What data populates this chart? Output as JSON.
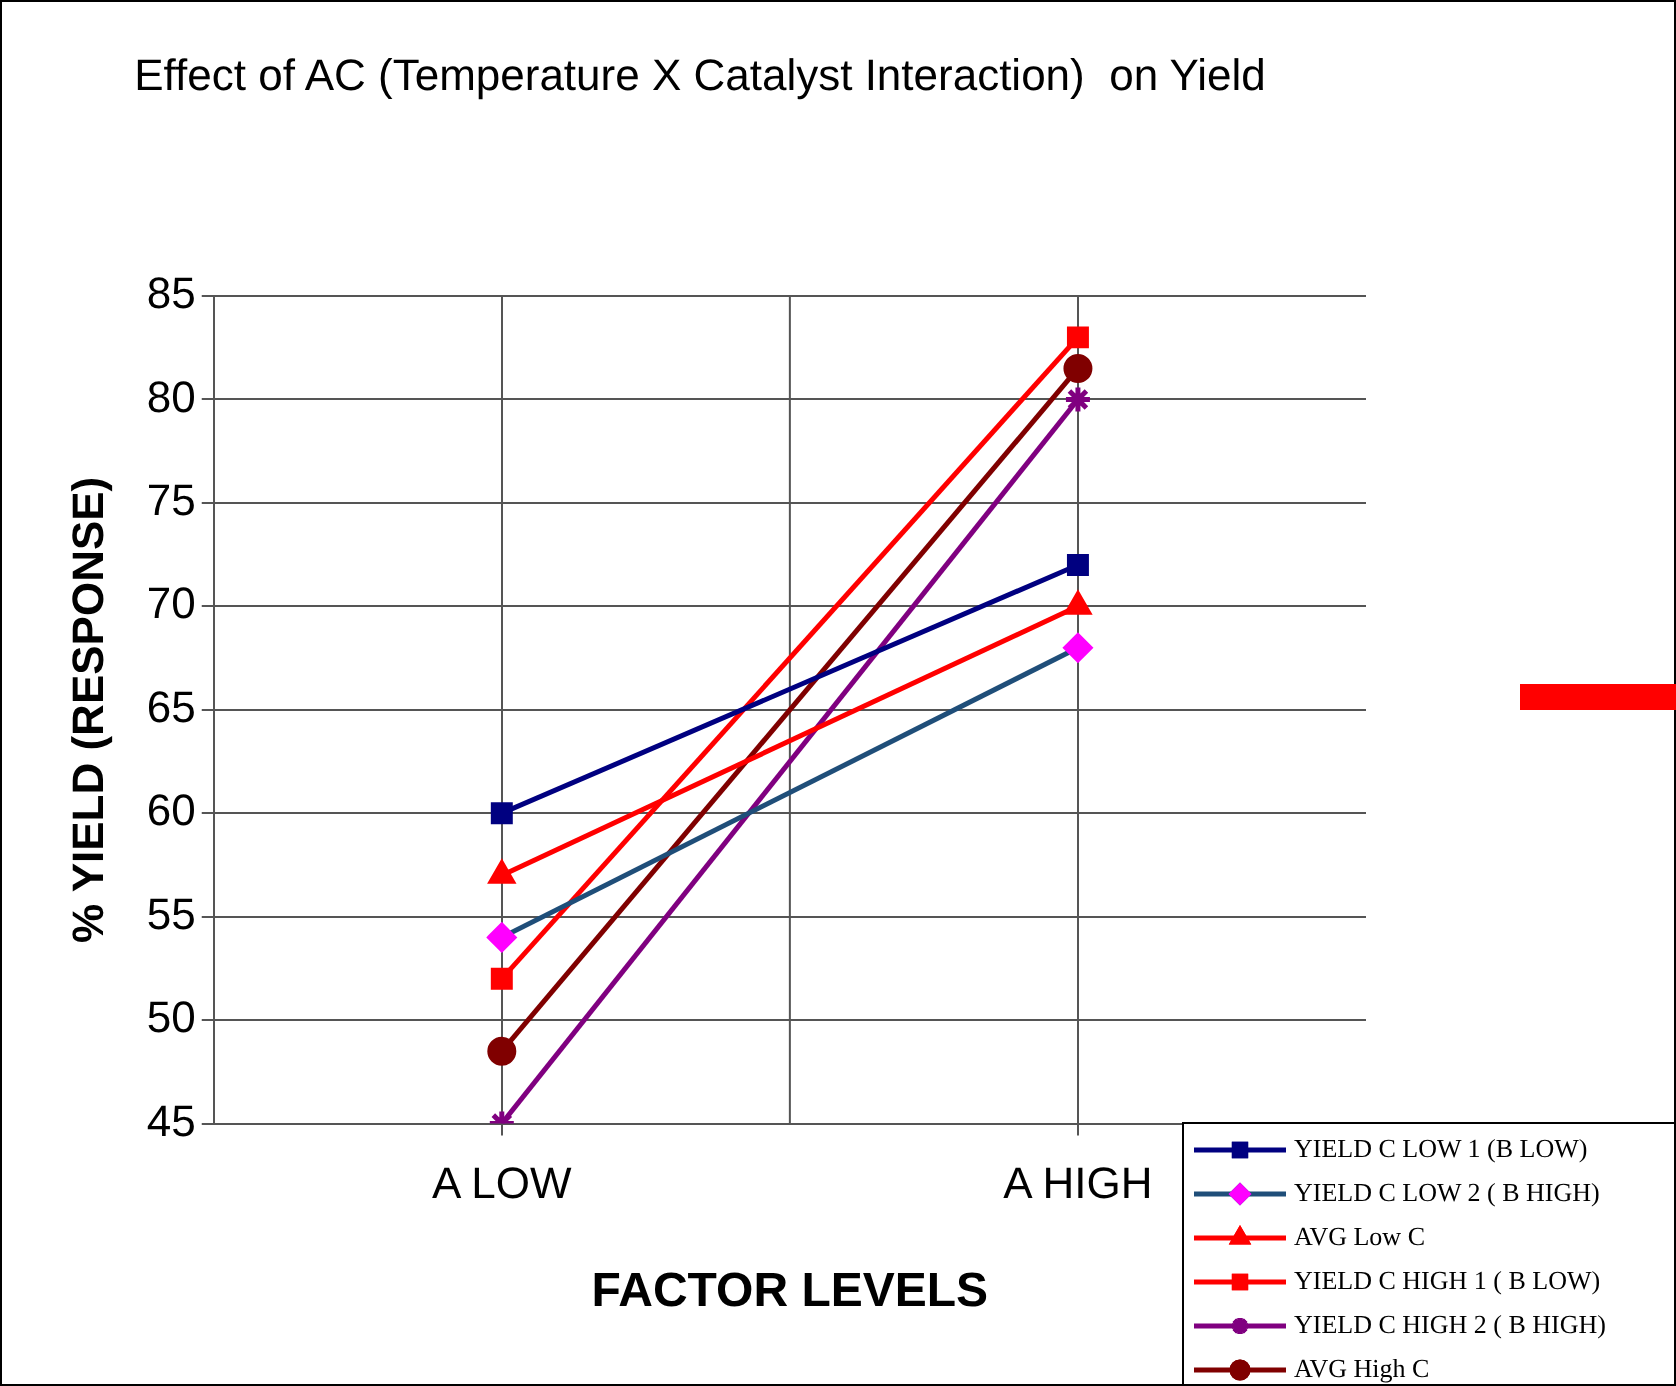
{
  "chart_data": {
    "type": "line",
    "title": "Effect of AC (Temperature X Catalyst Interaction)  on Yield",
    "xlabel": "FACTOR LEVELS",
    "ylabel": "% YIELD (RESPONSE)",
    "categories": [
      "A LOW",
      "A HIGH"
    ],
    "series": [
      {
        "name": "YIELD C LOW 1 (B LOW)",
        "color": "#000080",
        "marker": "square",
        "values": [
          60,
          72
        ]
      },
      {
        "name": "YIELD C LOW 2 ( B HIGH)",
        "color": "#1f4e79",
        "colors": [
          "#ff00ff",
          "#ff00ff"
        ],
        "marker": "diamond",
        "values": [
          54,
          68
        ]
      },
      {
        "name": "AVG Low C",
        "color": "#ff0000",
        "marker": "triangle",
        "values": [
          57,
          70
        ]
      },
      {
        "name": "YIELD C HIGH 1 ( B LOW)",
        "color": "#ff0000",
        "marker": "square",
        "values": [
          52,
          83
        ]
      },
      {
        "name": "YIELD C HIGH 2 ( B HIGH)",
        "color": "#800080",
        "marker": "cross",
        "values": [
          45,
          80
        ]
      },
      {
        "name": "AVG High C",
        "color": "#800000",
        "marker": "circle",
        "values": [
          48.5,
          81.5
        ]
      }
    ],
    "ylim": [
      45,
      85
    ],
    "yticks": [
      45,
      50,
      55,
      60,
      65,
      70,
      75,
      80,
      85
    ],
    "grid": true,
    "legend": "bottom right",
    "line_style": "solid"
  }
}
